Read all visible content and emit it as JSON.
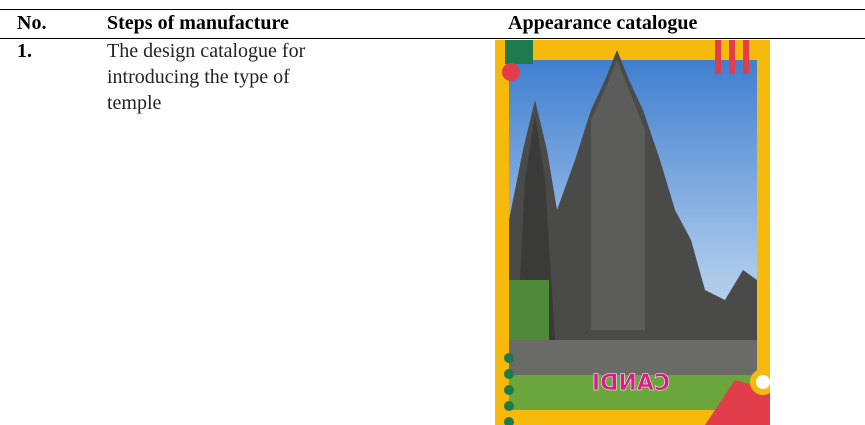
{
  "table": {
    "header": [
      "No.",
      "Steps of manufacture",
      "Appearance catalogue"
    ],
    "rows": [
      {
        "number": "1.",
        "step_lines": [
          "The design catalogue for",
          "introducing the type of",
          "temple"
        ],
        "image_text": "CANDI"
      }
    ]
  }
}
